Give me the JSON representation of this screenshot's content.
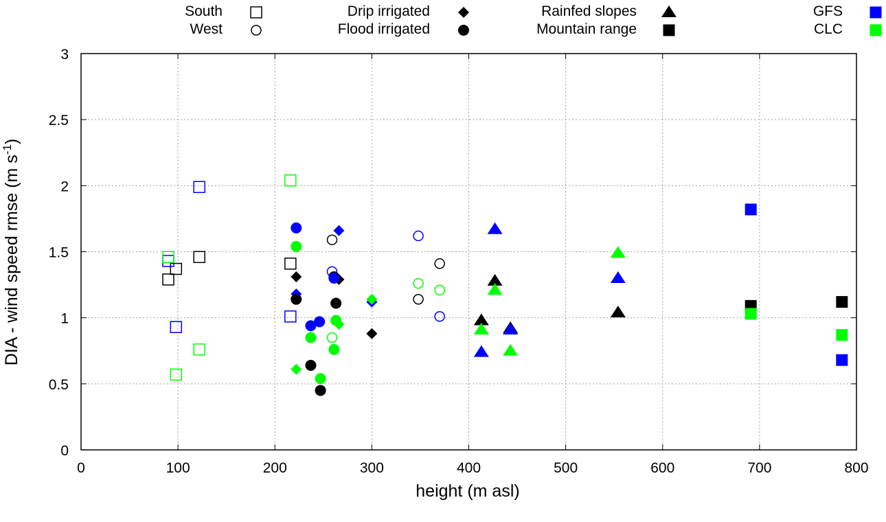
{
  "chart_data": {
    "type": "scatter",
    "title": "",
    "xlabel": "height (m asl)",
    "ylabel": "DIA - wind speed rmse (m s",
    "ylabel_sup": "-1",
    "ylabel_end": ")",
    "xlim": [
      0,
      800
    ],
    "ylim": [
      0,
      3
    ],
    "xticks": [
      "0",
      "100",
      "200",
      "300",
      "400",
      "500",
      "600",
      "700",
      "800"
    ],
    "yticks": [
      "0",
      "0.5",
      "1",
      "1.5",
      "2",
      "2.5",
      "3"
    ],
    "grid": true,
    "legend_placement": "top",
    "colors": {
      "DIA": "#000000",
      "GFS": "#0000ff",
      "CLC": "#00ff00"
    },
    "legend": {
      "regions": [
        {
          "label": "South",
          "marker": "open-square"
        },
        {
          "label": "West",
          "marker": "open-circle"
        },
        {
          "label": "Drip irrigated",
          "marker": "filled-diamond"
        },
        {
          "label": "Flood irrigated",
          "marker": "filled-circle"
        },
        {
          "label": "Rainfed slopes",
          "marker": "filled-triangle"
        },
        {
          "label": "Mountain range",
          "marker": "filled-square"
        }
      ],
      "datasets": [
        {
          "label": "GFS",
          "color": "#0000ff"
        },
        {
          "label": "CLC",
          "color": "#00ff00"
        }
      ]
    },
    "series": [
      {
        "name": "South DIA",
        "region": "South",
        "dataset": "DIA",
        "marker": "open-square",
        "points": [
          [
            90,
            1.29
          ],
          [
            98,
            1.37
          ],
          [
            122,
            1.46
          ],
          [
            216,
            1.41
          ]
        ]
      },
      {
        "name": "South GFS",
        "region": "South",
        "dataset": "GFS",
        "marker": "open-square",
        "points": [
          [
            90,
            1.43
          ],
          [
            98,
            0.93
          ],
          [
            122,
            1.99
          ],
          [
            216,
            1.01
          ]
        ]
      },
      {
        "name": "South CLC",
        "region": "South",
        "dataset": "CLC",
        "marker": "open-square",
        "points": [
          [
            90,
            1.46
          ],
          [
            98,
            0.57
          ],
          [
            122,
            0.76
          ],
          [
            216,
            2.04
          ]
        ]
      },
      {
        "name": "West DIA",
        "region": "West",
        "dataset": "DIA",
        "marker": "open-circle",
        "points": [
          [
            259,
            1.59
          ],
          [
            348,
            1.14
          ],
          [
            370,
            1.41
          ]
        ]
      },
      {
        "name": "West GFS",
        "region": "West",
        "dataset": "GFS",
        "marker": "open-circle",
        "points": [
          [
            259,
            1.35
          ],
          [
            348,
            1.62
          ],
          [
            370,
            1.01
          ]
        ]
      },
      {
        "name": "West CLC",
        "region": "West",
        "dataset": "CLC",
        "marker": "open-circle",
        "points": [
          [
            259,
            0.85
          ],
          [
            348,
            1.26
          ],
          [
            370,
            1.21
          ]
        ]
      },
      {
        "name": "Drip irrigated DIA",
        "region": "Drip irrigated",
        "dataset": "DIA",
        "marker": "filled-diamond",
        "points": [
          [
            222,
            1.31
          ],
          [
            266,
            1.29
          ],
          [
            300,
            0.88
          ]
        ]
      },
      {
        "name": "Drip irrigated GFS",
        "region": "Drip irrigated",
        "dataset": "GFS",
        "marker": "filled-diamond",
        "points": [
          [
            222,
            1.18
          ],
          [
            266,
            1.66
          ],
          [
            300,
            1.12
          ]
        ]
      },
      {
        "name": "Drip irrigated CLC",
        "region": "Drip irrigated",
        "dataset": "CLC",
        "marker": "filled-diamond",
        "points": [
          [
            222,
            0.61
          ],
          [
            266,
            0.95
          ],
          [
            300,
            1.14
          ]
        ]
      },
      {
        "name": "Flood irrigated DIA",
        "region": "Flood irrigated",
        "dataset": "DIA",
        "marker": "filled-circle",
        "points": [
          [
            222,
            1.14
          ],
          [
            237,
            0.64
          ],
          [
            247,
            0.45
          ],
          [
            263,
            1.11
          ],
          [
            261,
            1.31
          ]
        ]
      },
      {
        "name": "Flood irrigated GFS",
        "region": "Flood irrigated",
        "dataset": "GFS",
        "marker": "filled-circle",
        "points": [
          [
            222,
            1.68
          ],
          [
            237,
            0.94
          ],
          [
            246,
            0.97
          ],
          [
            261,
            1.3
          ]
        ]
      },
      {
        "name": "Flood irrigated CLC",
        "region": "Flood irrigated",
        "dataset": "CLC",
        "marker": "filled-circle",
        "points": [
          [
            222,
            1.54
          ],
          [
            237,
            0.85
          ],
          [
            247,
            0.54
          ],
          [
            263,
            0.98
          ],
          [
            261,
            0.76
          ]
        ]
      },
      {
        "name": "Rainfed slopes DIA",
        "region": "Rainfed slopes",
        "dataset": "DIA",
        "marker": "filled-triangle",
        "points": [
          [
            413,
            0.98
          ],
          [
            427,
            1.28
          ],
          [
            443,
            0.92
          ],
          [
            554,
            1.04
          ]
        ]
      },
      {
        "name": "Rainfed slopes GFS",
        "region": "Rainfed slopes",
        "dataset": "GFS",
        "marker": "filled-triangle",
        "points": [
          [
            413,
            0.74
          ],
          [
            427,
            1.67
          ],
          [
            443,
            0.91
          ],
          [
            554,
            1.3
          ]
        ]
      },
      {
        "name": "Rainfed slopes CLC",
        "region": "Rainfed slopes",
        "dataset": "CLC",
        "marker": "filled-triangle",
        "points": [
          [
            413,
            0.91
          ],
          [
            427,
            1.21
          ],
          [
            443,
            0.75
          ],
          [
            554,
            1.49
          ]
        ]
      },
      {
        "name": "Mountain range DIA",
        "region": "Mountain range",
        "dataset": "DIA",
        "marker": "filled-square",
        "points": [
          [
            691,
            1.09
          ],
          [
            785,
            1.12
          ]
        ]
      },
      {
        "name": "Mountain range GFS",
        "region": "Mountain range",
        "dataset": "GFS",
        "marker": "filled-square",
        "points": [
          [
            691,
            1.82
          ],
          [
            785,
            0.68
          ]
        ]
      },
      {
        "name": "Mountain range CLC",
        "region": "Mountain range",
        "dataset": "CLC",
        "marker": "filled-square",
        "points": [
          [
            691,
            1.03
          ],
          [
            785,
            0.87
          ]
        ]
      }
    ]
  }
}
